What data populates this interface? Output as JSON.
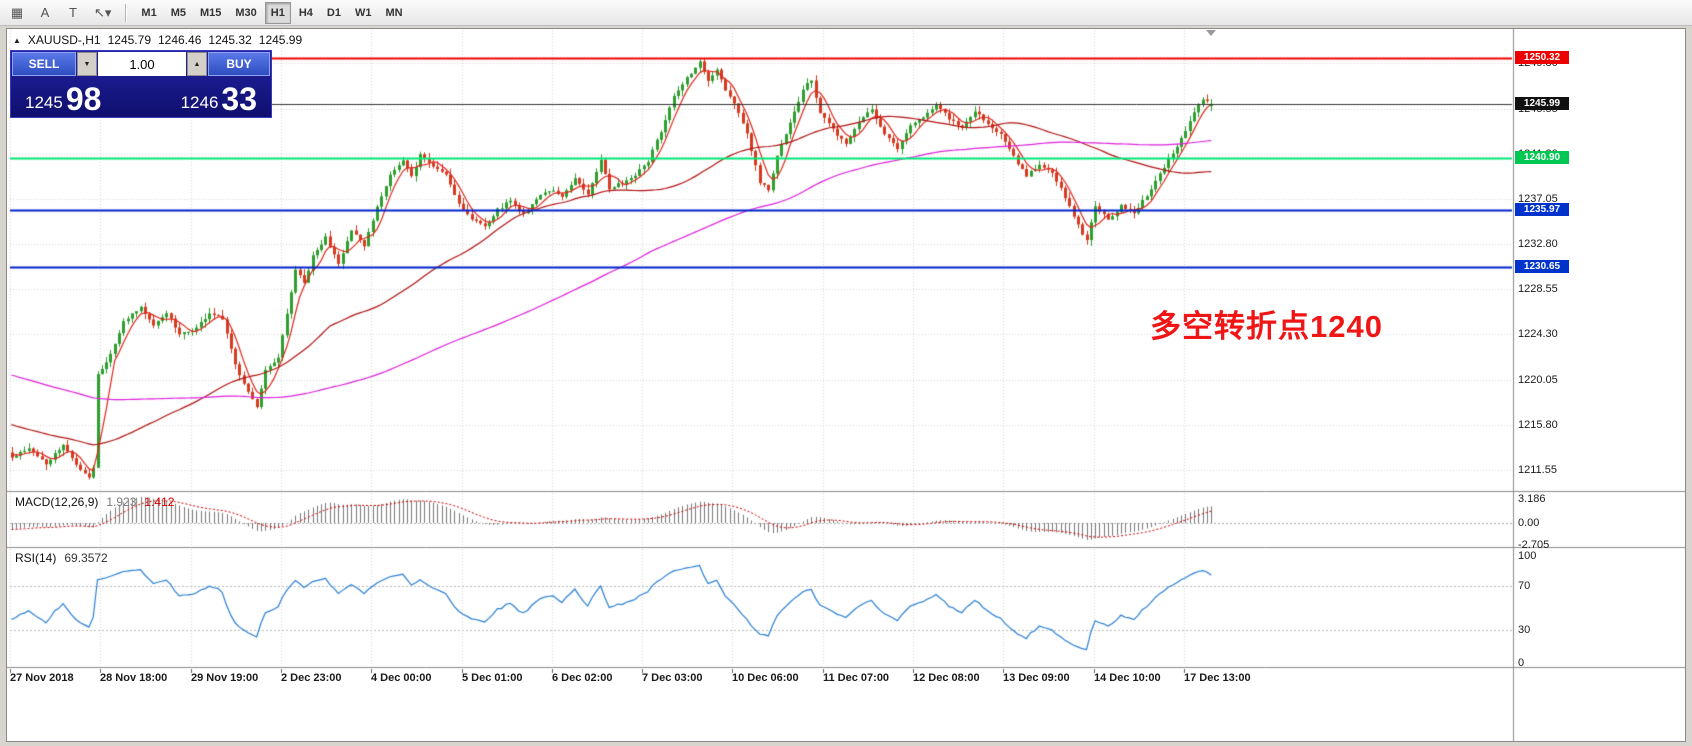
{
  "toolbar": {
    "icons": [
      {
        "name": "indicator-grid-icon",
        "glyph": "▦"
      },
      {
        "name": "text-a-icon",
        "glyph": "A"
      },
      {
        "name": "text-label-t-icon",
        "glyph": "T"
      },
      {
        "name": "cursor-tool-icon",
        "glyph": "↖▾"
      }
    ],
    "timeframes": [
      "M1",
      "M5",
      "M15",
      "M30",
      "H1",
      "H4",
      "D1",
      "W1",
      "MN"
    ],
    "active_timeframe": "H1"
  },
  "chart_header": {
    "symbol": "XAUUSD-,H1",
    "open": "1245.79",
    "high": "1246.46",
    "low": "1245.32",
    "close": "1245.99"
  },
  "trade_panel": {
    "sell_label": "SELL",
    "buy_label": "BUY",
    "volume": "1.00",
    "bid_main": "1245",
    "bid_pips": "98",
    "ask_main": "1246",
    "ask_pips": "33"
  },
  "annotation": {
    "text": "多空转折点1240"
  },
  "price_axis": {
    "labels": [
      "1249.80",
      "1245.55",
      "1241.30",
      "1237.05",
      "1232.80",
      "1228.55",
      "1224.30",
      "1220.05",
      "1215.80",
      "1211.55"
    ],
    "badges": [
      {
        "text": "1250.32",
        "price": 1250.32,
        "bg": "#ee0000",
        "name": "resistance-line-price-label"
      },
      {
        "text": "1245.99",
        "price": 1245.99,
        "bg": "#111111",
        "name": "current-price-label"
      },
      {
        "text": "1240.90",
        "price": 1240.9,
        "bg": "#00c853",
        "name": "pivot-line-price-label"
      },
      {
        "text": "1235.97",
        "price": 1235.97,
        "bg": "#0033cc",
        "name": "support-line1-price-label"
      },
      {
        "text": "1230.65",
        "price": 1230.65,
        "bg": "#0033cc",
        "name": "support-line2-price-label"
      }
    ]
  },
  "time_axis": [
    "27 Nov 2018",
    "28 Nov 18:00",
    "29 Nov 19:00",
    "2 Dec 23:00",
    "4 Dec 00:00",
    "5 Dec 01:00",
    "6 Dec 02:00",
    "7 Dec 03:00",
    "10 Dec 06:00",
    "11 Dec 07:00",
    "12 Dec 08:00",
    "13 Dec 09:00",
    "14 Dec 10:00",
    "17 Dec 13:00"
  ],
  "macd": {
    "label": "MACD(12,26,9)",
    "value_main": "1.923",
    "value_signal": "1.412",
    "axis": [
      "3.186",
      "0.00",
      "-2.705"
    ]
  },
  "rsi": {
    "label": "RSI(14)",
    "value": "69.3572",
    "axis": [
      "100",
      "70",
      "30",
      "0"
    ],
    "levels": [
      70,
      30
    ]
  },
  "chart_data": {
    "type": "candlestick",
    "symbol": "XAUUSD-",
    "timeframe": "H1",
    "last_ohlc": {
      "open": 1245.79,
      "high": 1246.46,
      "low": 1245.32,
      "close": 1245.99
    },
    "price_range": [
      1209.65,
      1252.95
    ],
    "horizontal_lines": [
      {
        "price": 1250.32,
        "color": "#ee0000",
        "width": 2
      },
      {
        "price": 1245.99,
        "color": "#333333",
        "width": 1
      },
      {
        "price": 1240.9,
        "color": "#00e676",
        "width": 2
      },
      {
        "price": 1235.97,
        "color": "#0022cc",
        "width": 2
      },
      {
        "price": 1230.65,
        "color": "#0022cc",
        "width": 2
      }
    ],
    "candle_count": 280,
    "bars_per_label": 21,
    "close_waypoints": [
      [
        0,
        1212.8
      ],
      [
        4,
        1213.6
      ],
      [
        8,
        1212.1
      ],
      [
        12,
        1213.9
      ],
      [
        15,
        1212.0
      ],
      [
        18,
        1210.9
      ],
      [
        19,
        1211.8
      ],
      [
        20,
        1220.5
      ],
      [
        23,
        1222.4
      ],
      [
        26,
        1225.6
      ],
      [
        30,
        1226.9
      ],
      [
        33,
        1225.0
      ],
      [
        36,
        1226.4
      ],
      [
        39,
        1224.2
      ],
      [
        43,
        1224.9
      ],
      [
        46,
        1226.3
      ],
      [
        49,
        1225.7
      ],
      [
        52,
        1221.4
      ],
      [
        55,
        1219.0
      ],
      [
        57,
        1217.4
      ],
      [
        59,
        1220.8
      ],
      [
        62,
        1222.0
      ],
      [
        64,
        1226.2
      ],
      [
        66,
        1230.4
      ],
      [
        68,
        1229.1
      ],
      [
        70,
        1231.6
      ],
      [
        73,
        1233.4
      ],
      [
        76,
        1231.1
      ],
      [
        79,
        1234.0
      ],
      [
        82,
        1232.6
      ],
      [
        85,
        1236.4
      ],
      [
        88,
        1239.4
      ],
      [
        91,
        1240.6
      ],
      [
        93,
        1239.1
      ],
      [
        95,
        1241.2
      ],
      [
        98,
        1240.1
      ],
      [
        101,
        1239.4
      ],
      [
        104,
        1236.6
      ],
      [
        107,
        1235.1
      ],
      [
        110,
        1234.6
      ],
      [
        113,
        1236.0
      ],
      [
        116,
        1236.9
      ],
      [
        119,
        1235.6
      ],
      [
        122,
        1237.1
      ],
      [
        125,
        1237.9
      ],
      [
        128,
        1237.2
      ],
      [
        131,
        1238.9
      ],
      [
        134,
        1237.6
      ],
      [
        137,
        1240.8
      ],
      [
        139,
        1237.9
      ],
      [
        142,
        1238.6
      ],
      [
        145,
        1239.3
      ],
      [
        148,
        1240.6
      ],
      [
        151,
        1243.4
      ],
      [
        154,
        1246.6
      ],
      [
        157,
        1248.4
      ],
      [
        160,
        1249.9
      ],
      [
        162,
        1248.1
      ],
      [
        164,
        1249.2
      ],
      [
        166,
        1247.1
      ],
      [
        168,
        1246.1
      ],
      [
        171,
        1243.1
      ],
      [
        174,
        1238.6
      ],
      [
        176,
        1237.9
      ],
      [
        178,
        1241.1
      ],
      [
        181,
        1244.1
      ],
      [
        184,
        1247.4
      ],
      [
        186,
        1248.2
      ],
      [
        188,
        1245.1
      ],
      [
        191,
        1243.6
      ],
      [
        194,
        1242.1
      ],
      [
        197,
        1244.4
      ],
      [
        200,
        1245.4
      ],
      [
        203,
        1243.1
      ],
      [
        206,
        1241.9
      ],
      [
        209,
        1244.1
      ],
      [
        212,
        1244.6
      ],
      [
        215,
        1246.1
      ],
      [
        218,
        1244.6
      ],
      [
        221,
        1243.6
      ],
      [
        224,
        1245.4
      ],
      [
        227,
        1244.1
      ],
      [
        230,
        1243.1
      ],
      [
        233,
        1241.1
      ],
      [
        236,
        1239.1
      ],
      [
        239,
        1240.4
      ],
      [
        242,
        1239.6
      ],
      [
        245,
        1237.1
      ],
      [
        248,
        1234.6
      ],
      [
        250,
        1233.1
      ],
      [
        252,
        1236.4
      ],
      [
        255,
        1235.1
      ],
      [
        258,
        1236.4
      ],
      [
        261,
        1235.6
      ],
      [
        264,
        1237.4
      ],
      [
        267,
        1239.4
      ],
      [
        270,
        1241.4
      ],
      [
        273,
        1243.4
      ],
      [
        275,
        1245.3
      ],
      [
        277,
        1246.4
      ],
      [
        279,
        1245.99
      ]
    ],
    "prepend": {
      "bars": 140,
      "from": 1230.0,
      "to": 1212.5
    },
    "noise_seed": 42,
    "noise_amp": 0.55,
    "moving_averages": [
      {
        "period": 5,
        "color": "#e0281e"
      },
      {
        "period": 55,
        "color": "#b01414"
      },
      {
        "period": 130,
        "color": "#dd22dd"
      }
    ],
    "macd_params": [
      12,
      26,
      9
    ],
    "rsi_period": 14,
    "colors": {
      "up": "#2f9e2f",
      "down": "#d63a20",
      "rsi": "#2a7fd4",
      "macd_hist": "#777777",
      "macd_signal": "#d00000"
    }
  }
}
